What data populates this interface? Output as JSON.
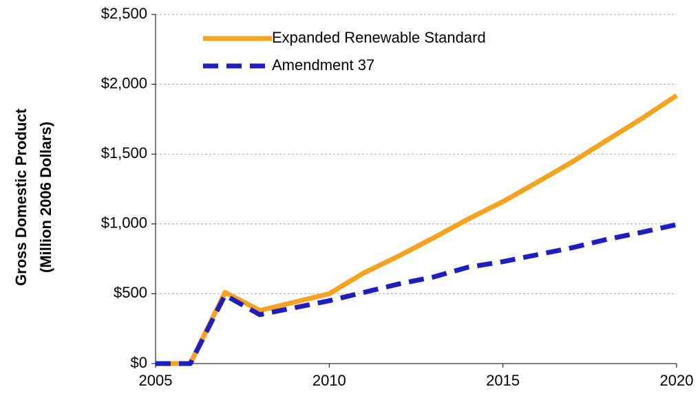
{
  "chart_data": {
    "type": "line",
    "y_label": [
      "Gross Domestic Product",
      "(Million 2006 Dollars)"
    ],
    "x": [
      2005,
      2006,
      2007,
      2008,
      2009,
      2010,
      2011,
      2012,
      2013,
      2014,
      2015,
      2016,
      2017,
      2018,
      2019,
      2020
    ],
    "series": [
      {
        "name": "Expanded Renewable Standard",
        "color": "#f7a21b",
        "dash": false,
        "values": [
          0,
          0,
          510,
          380,
          440,
          500,
          650,
          770,
          900,
          1035,
          1160,
          1300,
          1445,
          1600,
          1755,
          1920
        ]
      },
      {
        "name": "Amendment 37",
        "color": "#1c1cc8",
        "dash": true,
        "values": [
          0,
          0,
          490,
          350,
          400,
          450,
          510,
          570,
          620,
          690,
          730,
          780,
          830,
          890,
          940,
          995
        ]
      }
    ],
    "xlim": [
      2005,
      2020
    ],
    "xticks": [
      2005,
      2010,
      2015,
      2020
    ],
    "ylim": [
      0,
      2500
    ],
    "yticks": [
      {
        "value": 0,
        "label": "$0"
      },
      {
        "value": 500,
        "label": "$500"
      },
      {
        "value": 1000,
        "label": "$1,000"
      },
      {
        "value": 1500,
        "label": "$1,500"
      },
      {
        "value": 2000,
        "label": "$2,000"
      },
      {
        "value": 2500,
        "label": "$2,500"
      }
    ],
    "grid": true,
    "legend": "upper left"
  }
}
